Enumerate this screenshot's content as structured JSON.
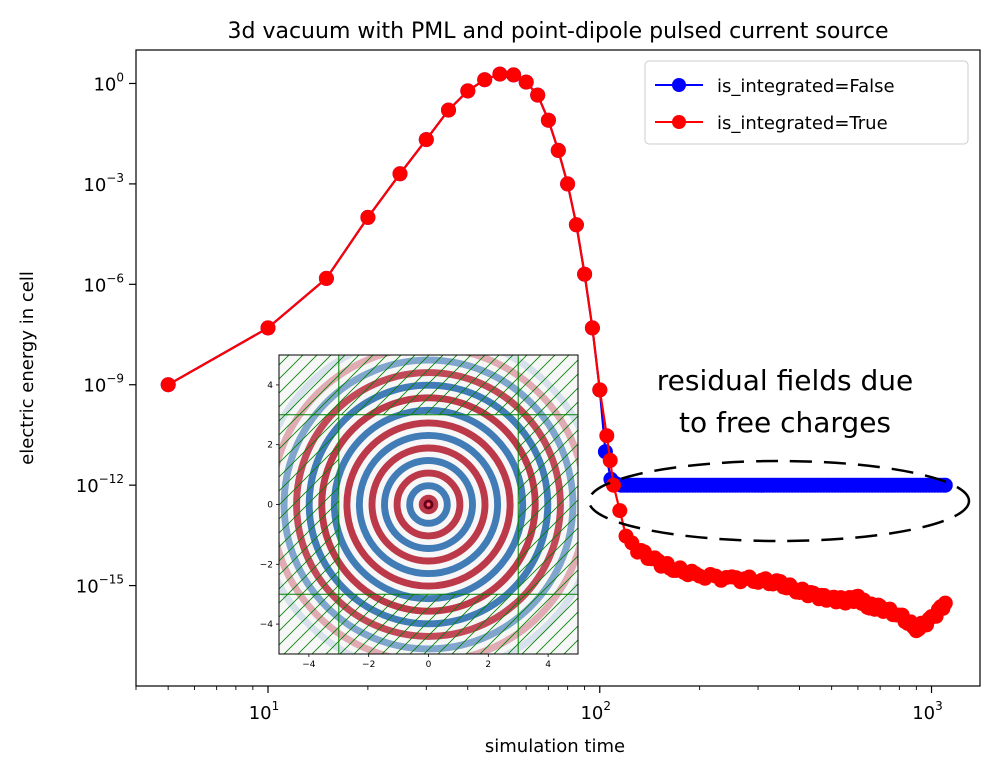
{
  "chart_data": {
    "type": "line",
    "title": "3d vacuum with PML and point-dipole pulsed current source",
    "xlabel": "simulation time",
    "ylabel": "electric energy in cell",
    "xscale": "log",
    "yscale": "log",
    "xlim": [
      4,
      1400
    ],
    "ylim": [
      1e-18,
      10
    ],
    "x_ticks": [
      {
        "value": 10,
        "base": "10",
        "exp": "1"
      },
      {
        "value": 100,
        "base": "10",
        "exp": "2"
      },
      {
        "value": 1000,
        "base": "10",
        "exp": "3"
      }
    ],
    "y_ticks": [
      {
        "value": 1,
        "base": "10",
        "exp": "0"
      },
      {
        "value": 0.001,
        "base": "10",
        "exp": "−3"
      },
      {
        "value": 1e-06,
        "base": "10",
        "exp": "−6"
      },
      {
        "value": 1e-09,
        "base": "10",
        "exp": "−9"
      },
      {
        "value": 1e-12,
        "base": "10",
        "exp": "−12"
      },
      {
        "value": 1e-15,
        "base": "10",
        "exp": "−15"
      }
    ],
    "grid": false,
    "legend": "top-right",
    "shared_pulse": {
      "x": [
        5,
        10,
        15,
        20,
        25,
        30,
        35,
        40,
        45,
        50,
        55,
        60,
        65,
        70,
        75,
        80,
        85,
        90,
        95,
        100
      ],
      "y": [
        1e-09,
        5e-08,
        1.5e-06,
        0.0001,
        0.002,
        0.021,
        0.16,
        0.6,
        1.3,
        1.9,
        1.8,
        1.1,
        0.45,
        0.08,
        0.01,
        0.001,
        6e-05,
        2e-06,
        5e-08,
        7e-10
      ]
    },
    "series": [
      {
        "name": "is_integrated=False",
        "color": "#0000ff",
        "tail": {
          "kind": "flat",
          "x_start": 104,
          "x_end": 1100,
          "y": 1e-12,
          "head_x": [
            104,
            108,
            112
          ],
          "head_y": [
            1e-11,
            1.5e-12,
            1.1e-12
          ]
        }
      },
      {
        "name": "is_integrated=True",
        "color": "#ff0000",
        "tail": {
          "kind": "decay",
          "x": [
            105,
            110,
            120,
            130,
            150,
            170,
            200,
            250,
            300,
            350,
            400,
            450,
            500,
            550,
            600,
            650,
            700,
            800,
            900,
            1000,
            1100
          ],
          "y": [
            3e-11,
            1e-12,
            3e-14,
            1.2e-14,
            4.8e-15,
            3e-15,
            2e-15,
            1.6e-15,
            1.5e-15,
            1.1e-15,
            7e-16,
            5e-16,
            4e-16,
            3.5e-16,
            4e-16,
            2.5e-16,
            2.2e-16,
            1.3e-16,
            5e-17,
            1e-16,
            3e-16
          ]
        }
      }
    ],
    "annotation": {
      "text_lines": [
        "residual fields due",
        "to free charges"
      ]
    },
    "inset": {
      "type": "heatmap",
      "description_visible": "concentric rings field plot with PML hatched border",
      "x_ticks": [
        "−4",
        "−2",
        "0",
        "2",
        "4"
      ],
      "y_ticks": [
        "4",
        "2",
        "0",
        "−2",
        "−4"
      ],
      "tick_values": [
        -4,
        -2,
        0,
        2,
        4
      ],
      "lim": [
        -5,
        5
      ],
      "pml_boundary": 3,
      "colors": {
        "positive": "#b2182b",
        "negative": "#2166ac",
        "zero": "#f7f7f7",
        "pml_lines": "#008000"
      }
    }
  }
}
